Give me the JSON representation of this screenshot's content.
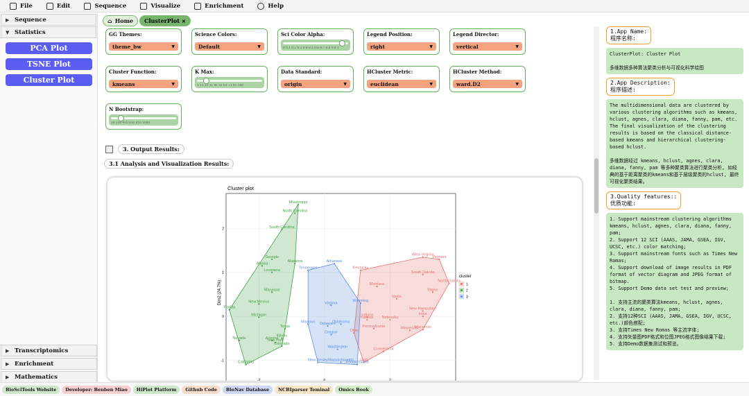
{
  "menu": [
    {
      "label": "File",
      "icon": "file-icon"
    },
    {
      "label": "Edit",
      "icon": "edit-icon"
    },
    {
      "label": "Sequence",
      "icon": "sequence-icon"
    },
    {
      "label": "Visualize",
      "icon": "visualize-icon"
    },
    {
      "label": "Enrichment",
      "icon": "enrichment-icon"
    },
    {
      "label": "Help",
      "icon": "help-icon"
    }
  ],
  "sidebar": {
    "sections": [
      "Sequence",
      "Statistics"
    ],
    "buttons": [
      "PCA Plot",
      "TSNE Plot",
      "Cluster Plot"
    ],
    "bottom_sections": [
      "Transcriptomics",
      "Enrichment",
      "Mathematics"
    ]
  },
  "tabs": {
    "home": "Home",
    "active": "ClusterPlot"
  },
  "params": {
    "gg_themes": {
      "label": "GG Themes:",
      "value": "theme_bw"
    },
    "science_colors": {
      "label": "Science Colors:",
      "value": "Default"
    },
    "sci_color_alpha": {
      "label": "Sci Color Alpha:",
      "ticks": "0 0.1 0.2 0.3 0.4 0.5 0.6 0.7 0.8 0.9 1",
      "level": 0.95
    },
    "legend_position": {
      "label": "Legend Position:",
      "value": "right"
    },
    "legend_director": {
      "label": "Legend Director:",
      "value": "vertical"
    },
    "cluster_function": {
      "label": "Cluster Function:",
      "value": "kmeans"
    },
    "k_max": {
      "label": "K Max:",
      "ticks": "1 11 21 31 41 51 61 71 81 100",
      "level": 0.1
    },
    "data_standard": {
      "label": "Data Standard:",
      "value": "origin"
    },
    "hcluster_metric": {
      "label": "HCluster Metric:",
      "value": "euclidean"
    },
    "hcluster_method": {
      "label": "HCluster Method:",
      "value": "ward.D2"
    },
    "n_bootstrap": {
      "label": "N Bootstrap:",
      "ticks": "10 210 410 610 810 1000",
      "level": 0.12
    }
  },
  "output": {
    "results_label": "3. Output Results:",
    "analysis_label": "3.1 Analysis and Visualization Results:"
  },
  "chart_data": {
    "type": "scatter",
    "title": "Cluster plot",
    "xlabel": "",
    "ylabel": "Dim2 (24.7%)",
    "xlim": [
      -3,
      4
    ],
    "ylim": [
      -1.5,
      2.8
    ],
    "x_ticks": [
      "-2",
      "0",
      "2"
    ],
    "y_ticks": [
      "2",
      "1",
      "0",
      "-1"
    ],
    "legend_title": "cluster",
    "colors": {
      "1": "#e57373",
      "2": "#43a047",
      "3": "#5a8fe0"
    },
    "points": [
      {
        "label": "Mississippi",
        "x": -0.8,
        "y": 2.55,
        "cluster": "2"
      },
      {
        "label": "North Carolina",
        "x": -0.9,
        "y": 2.35,
        "cluster": "2"
      },
      {
        "label": "South Carolina",
        "x": -1.3,
        "y": 1.98,
        "cluster": "2"
      },
      {
        "label": "Georgia",
        "x": -1.6,
        "y": 1.3,
        "cluster": "2"
      },
      {
        "label": "Alaska",
        "x": -1.9,
        "y": 1.15,
        "cluster": "2"
      },
      {
        "label": "Louisiana",
        "x": -1.6,
        "y": 1.0,
        "cluster": "2"
      },
      {
        "label": "Alabama",
        "x": -0.9,
        "y": 1.2,
        "cluster": "2"
      },
      {
        "label": "Maryland",
        "x": -1.6,
        "y": 0.55,
        "cluster": "2"
      },
      {
        "label": "New Mexico",
        "x": -2.0,
        "y": 0.28,
        "cluster": "2"
      },
      {
        "label": "Michigan",
        "x": -2.0,
        "y": -0.02,
        "cluster": "2"
      },
      {
        "label": "Florida",
        "x": -2.9,
        "y": 0.15,
        "cluster": "2"
      },
      {
        "label": "Illinois",
        "x": -1.3,
        "y": -0.5,
        "cluster": "2"
      },
      {
        "label": "Arizona",
        "x": -1.6,
        "y": -0.55,
        "cluster": "2"
      },
      {
        "label": "New York",
        "x": -1.5,
        "y": -0.6,
        "cluster": "2"
      },
      {
        "label": "Nevada",
        "x": -2.6,
        "y": -0.55,
        "cluster": "2"
      },
      {
        "label": "California",
        "x": -2.4,
        "y": -1.1,
        "cluster": "2"
      },
      {
        "label": "Texas",
        "x": -1.2,
        "y": -0.28,
        "cluster": "2"
      },
      {
        "label": "Colorado",
        "x": -1.3,
        "y": -0.68,
        "cluster": "2"
      },
      {
        "label": "Tennessee",
        "x": -0.5,
        "y": 1.05,
        "cluster": "3"
      },
      {
        "label": "Arkansas",
        "x": 0.3,
        "y": 1.2,
        "cluster": "3"
      },
      {
        "label": "Virginia",
        "x": 0.2,
        "y": 0.25,
        "cluster": "3"
      },
      {
        "label": "Missouri",
        "x": -0.5,
        "y": -0.18,
        "cluster": "3"
      },
      {
        "label": "Delaware",
        "x": 0.1,
        "y": -0.22,
        "cluster": "3"
      },
      {
        "label": "Oregon",
        "x": 0.2,
        "y": -0.42,
        "cluster": "3"
      },
      {
        "label": "Oklahoma",
        "x": 0.5,
        "y": -0.18,
        "cluster": "3"
      },
      {
        "label": "Washington",
        "x": 0.4,
        "y": -0.75,
        "cluster": "3"
      },
      {
        "label": "New Jersey",
        "x": -0.2,
        "y": -1.05,
        "cluster": "3"
      },
      {
        "label": "Massachusetts",
        "x": 0.5,
        "y": -1.05,
        "cluster": "3"
      },
      {
        "label": "Rhode Island",
        "x": 1.0,
        "y": -1.1,
        "cluster": "3"
      },
      {
        "label": "Wyoming",
        "x": 1.1,
        "y": 0.3,
        "cluster": "3"
      },
      {
        "label": "Kentucky",
        "x": 1.1,
        "y": 1.05,
        "cluster": "1"
      },
      {
        "label": "West Virginia",
        "x": 3.0,
        "y": 1.35,
        "cluster": "1"
      },
      {
        "label": "Vermont",
        "x": 3.5,
        "y": 1.3,
        "cluster": "1"
      },
      {
        "label": "South Dakota",
        "x": 3.0,
        "y": 0.95,
        "cluster": "1"
      },
      {
        "label": "North Dakota",
        "x": 3.8,
        "y": 0.75,
        "cluster": "1"
      },
      {
        "label": "Montana",
        "x": 1.6,
        "y": 0.68,
        "cluster": "1"
      },
      {
        "label": "Maine",
        "x": 3.3,
        "y": 0.55,
        "cluster": "1"
      },
      {
        "label": "Idaho",
        "x": 2.2,
        "y": 0.4,
        "cluster": "1"
      },
      {
        "label": "New Hampshire",
        "x": 3.0,
        "y": 0.12,
        "cluster": "1"
      },
      {
        "label": "Iowa",
        "x": 3.0,
        "y": 0.0,
        "cluster": "1"
      },
      {
        "label": "Indiana",
        "x": 1.3,
        "y": -0.02,
        "cluster": "1"
      },
      {
        "label": "Kansas",
        "x": 1.3,
        "y": -0.08,
        "cluster": "1"
      },
      {
        "label": "Nebraska",
        "x": 2.0,
        "y": -0.08,
        "cluster": "1"
      },
      {
        "label": "Pennsylvania",
        "x": 1.5,
        "y": -0.28,
        "cluster": "1"
      },
      {
        "label": "Minnesota",
        "x": 2.6,
        "y": -0.32,
        "cluster": "1"
      },
      {
        "label": "Wisconsin",
        "x": 3.0,
        "y": -0.3,
        "cluster": "1"
      },
      {
        "label": "Ohio",
        "x": 0.9,
        "y": -0.38,
        "cluster": "1"
      },
      {
        "label": "Connecticut",
        "x": 1.8,
        "y": -0.8,
        "cluster": "1"
      },
      {
        "label": "Utah",
        "x": 1.2,
        "y": -1.05,
        "cluster": "1"
      }
    ]
  },
  "right": {
    "h1": "1.App Name:\n程序名称:",
    "b1": "ClusterPlot: Cluster Plot\n\n多维数据多种算法聚类分析与可视化科学绘图",
    "h2": "2.App Description:\n程序描述:",
    "b2": "The multidimensional data are clustered by various clustering algorithms such as kmeans, hclust, agnes, clara, diana, fanny, pam, etc. The final visualization of the clustering results is based on the classical distance-based kmeans and hierarchical clustering-based hclust.\n\n多维数据经过 kmeans, hclust, agnes, clara, diana, fanny, pam 等多种聚类算法进行聚类分析, 如经典的基于距离聚类的kmeans和基于层级聚类的hclust, 最终可视化聚类结果。",
    "h3": "3.Quality features::\n优质功能:",
    "b3": "1. Support mainstream clustering algorithms kmeans, hclust, agnes, clara, diana, fanny, pam;\n2. Support 12 SCI (AAAS, JAMA, GSEA, IGV, UCSC, etc.) color matching;\n3. Support mainstream fonts such as Times New Romas;\n4. Support download of image results in PDF format of vector diagram and JPEG format of bitmap.\n5. Support Demo data set test and preview;\n\n1. 支持主流的聚类算法kmeans, hclust, agnes, clara, diana, fanny, pam;\n2. 支持12种SCI (AAAS, JAMA, GSEA, IGV, UCSC, etc.)颜色搭配;\n3. 支持Times New Romas 等主流字体;\n4. 支持矢量图PDF格式和位图JPEG格式图像结果下载;\n5. 支持Demo数据集测试和预览。"
  },
  "footer": [
    {
      "label": "BioSciTools Website",
      "bg": "#cfe8cb"
    },
    {
      "label": "Developer: Benben Miao",
      "bg": "#f6d0d0"
    },
    {
      "label": "HiPlot Platform",
      "bg": "#cde8c8"
    },
    {
      "label": "Github Code",
      "bg": "#f7dccd"
    },
    {
      "label": "BioNav Database",
      "bg": "#cdd6f2"
    },
    {
      "label": "NCBIparser Teminal",
      "bg": "#f7e6c6"
    },
    {
      "label": "Omics Book",
      "bg": "#d2edc9"
    }
  ]
}
